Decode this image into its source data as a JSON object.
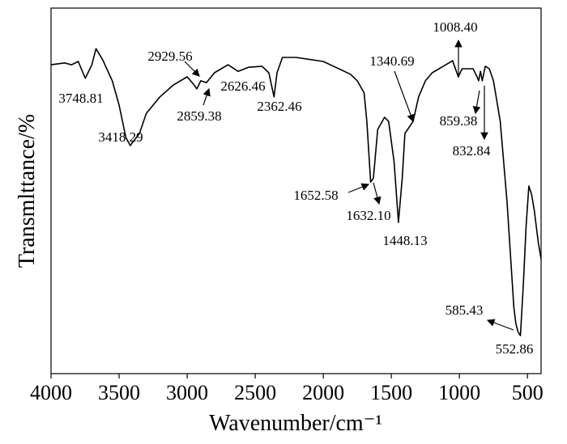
{
  "chart_data": {
    "type": "line",
    "x_label": "Wavenumber/cm⁻¹",
    "y_label": "Transmlttance/%",
    "x": [
      4000,
      3900,
      3850,
      3800,
      3748,
      3700,
      3670,
      3620,
      3550,
      3500,
      3450,
      3418,
      3350,
      3300,
      3200,
      3100,
      3000,
      2950,
      2929,
      2900,
      2859,
      2800,
      2700,
      2626,
      2550,
      2450,
      2400,
      2362,
      2340,
      2300,
      2200,
      2000,
      1800,
      1750,
      1700,
      1680,
      1652,
      1632,
      1600,
      1550,
      1520,
      1480,
      1448,
      1420,
      1400,
      1340,
      1300,
      1250,
      1200,
      1100,
      1050,
      1008,
      980,
      950,
      900,
      870,
      859,
      845,
      832,
      810,
      780,
      750,
      700,
      650,
      600,
      585,
      570,
      552,
      530,
      510,
      490,
      470,
      450,
      420,
      400
    ],
    "series": [
      {
        "color": "#000000",
        "values": [
          84.5,
          85.0,
          84.5,
          85.4,
          80.8,
          84.5,
          88.9,
          85.8,
          80.1,
          73.5,
          64.6,
          62.4,
          65.7,
          71.2,
          75.7,
          79.0,
          81.2,
          79.0,
          77.9,
          80.1,
          79.6,
          82.3,
          84.5,
          82.7,
          83.8,
          84.1,
          82.3,
          75.7,
          82.3,
          86.5,
          86.5,
          85.4,
          81.9,
          80.1,
          76.8,
          69.0,
          52.4,
          53.5,
          66.8,
          70.1,
          69.0,
          58.0,
          41.4,
          53.5,
          65.7,
          69.0,
          75.7,
          80.1,
          82.3,
          84.5,
          85.6,
          81.2,
          83.4,
          83.4,
          83.4,
          81.2,
          80.1,
          82.7,
          80.1,
          84.1,
          83.4,
          80.1,
          69.0,
          46.9,
          18.1,
          13.7,
          11.5,
          10.4,
          24.8,
          40.3,
          51.3,
          49.1,
          44.7,
          35.8,
          31.4
        ]
      }
    ],
    "xlim": [
      4000,
      400
    ],
    "ylim": [
      0,
      100
    ],
    "xticks": [
      4000,
      3500,
      3000,
      2500,
      2000,
      1500,
      1000,
      500
    ],
    "annotations": [
      "3748.81",
      "3418.29",
      "2929.56",
      "2859.38",
      "2626.46",
      "2362.46",
      "1340.69",
      "1008.40",
      "859.38",
      "832.84",
      "1652.58",
      "1632.10",
      "1448.13",
      "585.43",
      "552.86"
    ]
  }
}
